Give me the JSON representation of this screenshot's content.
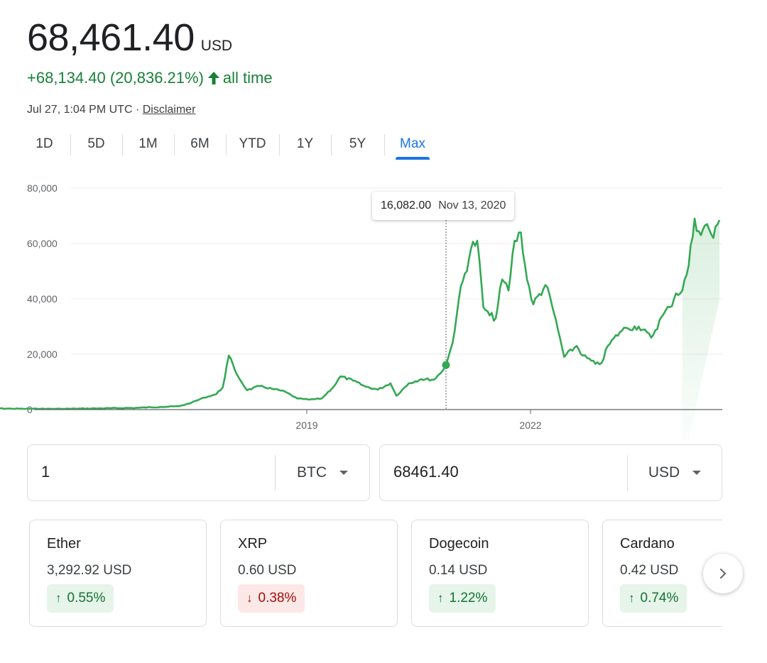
{
  "header": {
    "price": "68,461.40",
    "currency": "USD",
    "change": "+68,134.40 (20,836.21%)",
    "change_period": "all time",
    "timestamp": "Jul 27, 1:04 PM UTC · ",
    "disclaimer": "Disclaimer",
    "positive_color": "#188038"
  },
  "range_tabs": [
    {
      "label": "1D",
      "active": false
    },
    {
      "label": "5D",
      "active": false
    },
    {
      "label": "1M",
      "active": false
    },
    {
      "label": "6M",
      "active": false
    },
    {
      "label": "YTD",
      "active": false
    },
    {
      "label": "1Y",
      "active": false
    },
    {
      "label": "5Y",
      "active": false
    },
    {
      "label": "Max",
      "active": true
    }
  ],
  "tooltip": {
    "value": "16,082.00",
    "date": "Nov 13, 2020"
  },
  "chart_data": {
    "type": "area",
    "title": "",
    "xlabel": "",
    "ylabel": "",
    "y_ticks": [
      "80,000",
      "60,000",
      "40,000",
      "20,000",
      "0"
    ],
    "x_ticks": [
      "2019",
      "2022"
    ],
    "ylim": [
      0,
      80000
    ],
    "grid": true,
    "color": "#34a853",
    "points": [
      [
        "2014-09",
        450
      ],
      [
        "2015-03",
        260
      ],
      [
        "2015-09",
        240
      ],
      [
        "2016-03",
        420
      ],
      [
        "2016-09",
        610
      ],
      [
        "2017-01",
        970
      ],
      [
        "2017-04",
        1200
      ],
      [
        "2017-06",
        2500
      ],
      [
        "2017-08",
        4300
      ],
      [
        "2017-10",
        5600
      ],
      [
        "2017-11",
        8000
      ],
      [
        "2017-12",
        19500
      ],
      [
        "2018-01",
        14000
      ],
      [
        "2018-02",
        10000
      ],
      [
        "2018-03",
        7000
      ],
      [
        "2018-05",
        8500
      ],
      [
        "2018-07",
        7500
      ],
      [
        "2018-09",
        6500
      ],
      [
        "2018-11",
        4000
      ],
      [
        "2019-01",
        3600
      ],
      [
        "2019-03",
        4000
      ],
      [
        "2019-05",
        8500
      ],
      [
        "2019-06",
        12000
      ],
      [
        "2019-08",
        10500
      ],
      [
        "2019-10",
        8300
      ],
      [
        "2019-12",
        7200
      ],
      [
        "2020-02",
        9500
      ],
      [
        "2020-03",
        5000
      ],
      [
        "2020-05",
        9500
      ],
      [
        "2020-07",
        11000
      ],
      [
        "2020-09",
        10800
      ],
      [
        "2020-10",
        13000
      ],
      [
        "2020-11-13",
        16082
      ],
      [
        "2020-12",
        24000
      ],
      [
        "2021-01",
        40000
      ],
      [
        "2021-03",
        58000
      ],
      [
        "2021-04",
        61000
      ],
      [
        "2021-05",
        37000
      ],
      [
        "2021-06",
        34000
      ],
      [
        "2021-07",
        33000
      ],
      [
        "2021-08",
        47000
      ],
      [
        "2021-09",
        43000
      ],
      [
        "2021-10",
        61000
      ],
      [
        "2021-11",
        64000
      ],
      [
        "2021-12",
        47000
      ],
      [
        "2022-01",
        38000
      ],
      [
        "2022-03",
        45000
      ],
      [
        "2022-04",
        38000
      ],
      [
        "2022-05",
        29000
      ],
      [
        "2022-06",
        19000
      ],
      [
        "2022-08",
        23000
      ],
      [
        "2022-09",
        19500
      ],
      [
        "2022-11",
        16500
      ],
      [
        "2022-12",
        16800
      ],
      [
        "2023-01",
        23000
      ],
      [
        "2023-03",
        28000
      ],
      [
        "2023-04",
        29500
      ],
      [
        "2023-06",
        30000
      ],
      [
        "2023-08",
        26000
      ],
      [
        "2023-10",
        34500
      ],
      [
        "2023-11",
        37000
      ],
      [
        "2023-12",
        42000
      ],
      [
        "2024-01",
        43000
      ],
      [
        "2024-02",
        52000
      ],
      [
        "2024-03",
        69000
      ],
      [
        "2024-04",
        63000
      ],
      [
        "2024-05",
        67000
      ],
      [
        "2024-06",
        62000
      ],
      [
        "2024-07",
        68461
      ]
    ],
    "marker": [
      "2020-11-13",
      16082
    ]
  },
  "converter": {
    "from_value": "1",
    "from_unit": "BTC",
    "to_value": "68461.40",
    "to_unit": "USD"
  },
  "cards": [
    {
      "name": "Ether",
      "price": "3,292.92 USD",
      "change": "0.55%",
      "direction": "up"
    },
    {
      "name": "XRP",
      "price": "0.60 USD",
      "change": "0.38%",
      "direction": "down"
    },
    {
      "name": "Dogecoin",
      "price": "0.14 USD",
      "change": "1.22%",
      "direction": "up"
    },
    {
      "name": "Cardano",
      "price": "0.42 USD",
      "change": "0.74%",
      "direction": "up"
    }
  ],
  "icons": {
    "up_arrow": "↑",
    "down_arrow": "↓",
    "next": "chevron-right-icon"
  }
}
